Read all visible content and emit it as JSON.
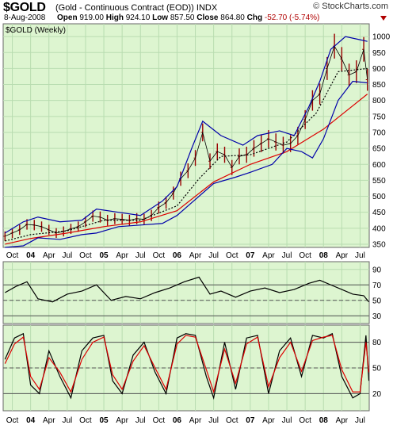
{
  "header": {
    "symbol": "$GOLD",
    "description": "(Gold - Continuous Contract (EOD)) INDX",
    "brand": "© StockCharts.com",
    "date": "8-Aug-2008",
    "open_label": "Open",
    "open": "919.00",
    "high_label": "High",
    "high": "924.10",
    "low_label": "Low",
    "low": "857.50",
    "close_label": "Close",
    "close": "864.80",
    "chg_label": "Chg",
    "chg": "-52.70 (-5.74%)",
    "chg_color": "#b00000"
  },
  "chart_data": [
    {
      "type": "line",
      "panel": "price",
      "label": "$GOLD (Weekly)",
      "background": "#ddf5d0",
      "ylim": [
        340,
        1040
      ],
      "y_ticks": [
        350,
        400,
        450,
        500,
        550,
        600,
        650,
        700,
        750,
        800,
        850,
        900,
        950,
        1000
      ],
      "x_ticks": [
        "Oct",
        "04",
        "Apr",
        "Jul",
        "Oct",
        "05",
        "Apr",
        "Jul",
        "Oct",
        "06",
        "Apr",
        "Jul",
        "Oct",
        "07",
        "Apr",
        "Jul",
        "Oct",
        "08",
        "Apr",
        "Jul"
      ],
      "x_dates": [
        2003.625,
        2008.625
      ],
      "series": [
        {
          "role": "price bars",
          "color": "#990000",
          "x": [
            2003.65,
            2003.75,
            2003.85,
            2003.95,
            2004.05,
            2004.15,
            2004.25,
            2004.35,
            2004.45,
            2004.55,
            2004.65,
            2004.75,
            2004.85,
            2004.95,
            2005.05,
            2005.15,
            2005.25,
            2005.35,
            2005.45,
            2005.55,
            2005.65,
            2005.75,
            2005.85,
            2005.95,
            2006.05,
            2006.15,
            2006.25,
            2006.35,
            2006.45,
            2006.55,
            2006.65,
            2006.75,
            2006.85,
            2006.95,
            2007.05,
            2007.15,
            2007.25,
            2007.35,
            2007.45,
            2007.55,
            2007.65,
            2007.75,
            2007.85,
            2007.95,
            2008.05,
            2008.15,
            2008.25,
            2008.35,
            2008.45,
            2008.55,
            2008.6
          ],
          "values": [
            375,
            385,
            395,
            412,
            410,
            405,
            395,
            385,
            390,
            398,
            405,
            420,
            438,
            435,
            425,
            430,
            428,
            425,
            430,
            428,
            440,
            465,
            480,
            510,
            555,
            580,
            620,
            700,
            610,
            640,
            630,
            590,
            625,
            630,
            650,
            665,
            680,
            670,
            660,
            665,
            690,
            740,
            800,
            820,
            900,
            970,
            930,
            880,
            890,
            960,
            865
          ]
        },
        {
          "role": "moving average (red)",
          "color": "#dd0000",
          "x": [
            2003.65,
            2004.0,
            2004.5,
            2005.0,
            2005.5,
            2006.0,
            2006.5,
            2007.0,
            2007.5,
            2008.0,
            2008.6
          ],
          "values": [
            350,
            368,
            385,
            405,
            420,
            455,
            545,
            600,
            640,
            710,
            820
          ]
        },
        {
          "role": "moving average (dotted)",
          "color": "#000000",
          "x": [
            2003.65,
            2004.0,
            2004.5,
            2005.0,
            2005.5,
            2006.0,
            2006.3,
            2006.6,
            2007.0,
            2007.5,
            2007.9,
            2008.2,
            2008.6
          ],
          "values": [
            360,
            380,
            392,
            425,
            425,
            470,
            555,
            625,
            630,
            670,
            760,
            890,
            900
          ]
        },
        {
          "role": "upper band (blue)",
          "color": "#0000aa",
          "x": [
            2003.65,
            2003.9,
            2004.1,
            2004.4,
            2004.7,
            2004.9,
            2005.2,
            2005.5,
            2005.8,
            2006.0,
            2006.2,
            2006.35,
            2006.6,
            2006.9,
            2007.1,
            2007.4,
            2007.6,
            2007.8,
            2007.95,
            2008.1,
            2008.3,
            2008.5,
            2008.6
          ],
          "values": [
            385,
            420,
            435,
            420,
            425,
            460,
            450,
            440,
            485,
            530,
            650,
            735,
            690,
            660,
            690,
            705,
            690,
            780,
            860,
            960,
            1000,
            990,
            985
          ]
        },
        {
          "role": "lower band (blue)",
          "color": "#0000aa",
          "x": [
            2003.65,
            2003.9,
            2004.1,
            2004.4,
            2004.7,
            2004.9,
            2005.2,
            2005.5,
            2005.8,
            2006.0,
            2006.2,
            2006.5,
            2006.8,
            2007.0,
            2007.3,
            2007.5,
            2007.7,
            2007.85,
            2008.0,
            2008.2,
            2008.4,
            2008.6
          ],
          "values": [
            340,
            345,
            370,
            365,
            380,
            385,
            405,
            410,
            415,
            440,
            480,
            540,
            560,
            575,
            600,
            650,
            640,
            620,
            680,
            800,
            860,
            855
          ]
        }
      ]
    },
    {
      "type": "line",
      "panel": "rsi",
      "background": "#ddf5d0",
      "ylim": [
        20,
        100
      ],
      "y_ticks": [
        30,
        50,
        70,
        90
      ],
      "reference_lines": [
        70,
        50,
        30
      ],
      "series": [
        {
          "role": "rsi",
          "color": "#000000",
          "x": [
            2003.65,
            2003.8,
            2003.95,
            2004.1,
            2004.3,
            2004.5,
            2004.7,
            2004.9,
            2005.1,
            2005.3,
            2005.5,
            2005.7,
            2005.9,
            2006.1,
            2006.3,
            2006.45,
            2006.6,
            2006.8,
            2007.0,
            2007.2,
            2007.4,
            2007.6,
            2007.8,
            2007.95,
            2008.1,
            2008.25,
            2008.4,
            2008.55,
            2008.62
          ],
          "values": [
            60,
            68,
            74,
            52,
            48,
            58,
            62,
            70,
            50,
            55,
            52,
            60,
            66,
            74,
            80,
            58,
            62,
            54,
            62,
            66,
            60,
            64,
            72,
            76,
            70,
            64,
            58,
            56,
            48
          ]
        }
      ]
    },
    {
      "type": "line",
      "panel": "stochastic",
      "background": "#ddf5d0",
      "ylim": [
        0,
        100
      ],
      "y_ticks": [
        20,
        50,
        80
      ],
      "reference_lines": [
        80,
        50,
        20
      ],
      "series": [
        {
          "role": "%K",
          "color": "#000000",
          "x": [
            2003.65,
            2003.78,
            2003.9,
            2004.0,
            2004.12,
            2004.25,
            2004.4,
            2004.55,
            2004.7,
            2004.85,
            2005.0,
            2005.12,
            2005.25,
            2005.4,
            2005.55,
            2005.7,
            2005.85,
            2006.0,
            2006.12,
            2006.25,
            2006.4,
            2006.5,
            2006.65,
            2006.8,
            2006.95,
            2007.1,
            2007.25,
            2007.4,
            2007.55,
            2007.7,
            2007.85,
            2008.0,
            2008.12,
            2008.25,
            2008.4,
            2008.5,
            2008.58,
            2008.62
          ],
          "values": [
            60,
            85,
            90,
            30,
            20,
            70,
            40,
            15,
            70,
            85,
            88,
            35,
            20,
            65,
            80,
            45,
            20,
            85,
            90,
            88,
            40,
            15,
            80,
            25,
            85,
            88,
            20,
            70,
            85,
            40,
            88,
            85,
            90,
            40,
            15,
            20,
            88,
            35
          ]
        },
        {
          "role": "%D",
          "color": "#dd0000",
          "x": [
            2003.65,
            2003.78,
            2003.9,
            2004.0,
            2004.12,
            2004.25,
            2004.4,
            2004.55,
            2004.7,
            2004.85,
            2005.0,
            2005.12,
            2005.25,
            2005.4,
            2005.55,
            2005.7,
            2005.85,
            2006.0,
            2006.12,
            2006.25,
            2006.4,
            2006.5,
            2006.65,
            2006.8,
            2006.95,
            2007.1,
            2007.25,
            2007.4,
            2007.55,
            2007.7,
            2007.85,
            2008.0,
            2008.12,
            2008.25,
            2008.4,
            2008.5,
            2008.58,
            2008.62
          ],
          "values": [
            55,
            78,
            86,
            40,
            25,
            62,
            45,
            22,
            60,
            80,
            86,
            42,
            25,
            58,
            76,
            50,
            25,
            78,
            88,
            86,
            48,
            22,
            72,
            32,
            78,
            86,
            28,
            62,
            80,
            46,
            82,
            86,
            88,
            48,
            22,
            22,
            80,
            45
          ]
        }
      ]
    }
  ]
}
